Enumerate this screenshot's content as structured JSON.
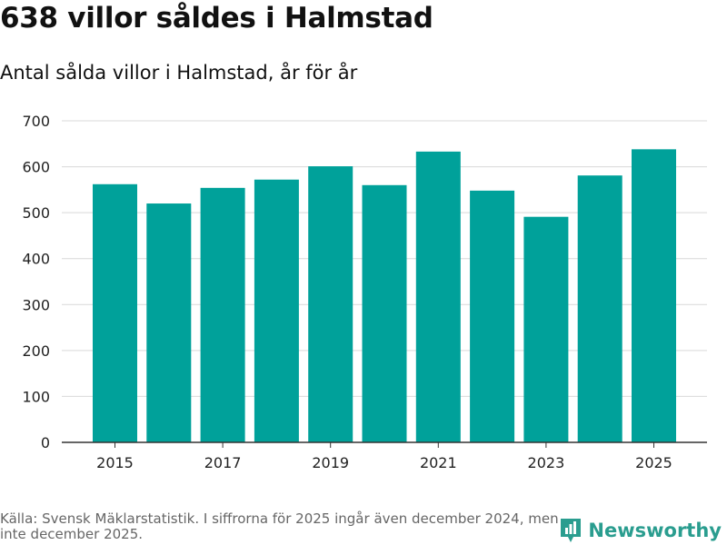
{
  "title": "638 villor såldes i Halmstad",
  "subtitle": "Antal sålda villor i Halmstad, år för år",
  "source_note": "Källa: Svensk Mäklarstatistik. I siffrorna för 2025 ingår även december 2024, men inte december 2025.",
  "brand": {
    "name": "Newsworthy",
    "icon": "newsworthy-logo-icon",
    "color": "#2a9d8f"
  },
  "colors": {
    "bar": "#00a19a",
    "grid": "#d9d9d9",
    "axis": "#333333"
  },
  "chart_data": {
    "type": "bar",
    "title": "Antal sålda villor i Halmstad, år för år",
    "xlabel": "",
    "ylabel": "",
    "categories": [
      "2015",
      "2016",
      "2017",
      "2018",
      "2019",
      "2020",
      "2021",
      "2022",
      "2023",
      "2024",
      "2025"
    ],
    "values": [
      562,
      520,
      554,
      572,
      601,
      560,
      633,
      548,
      491,
      581,
      638
    ],
    "ylim": [
      0,
      700
    ],
    "yticks": [
      0,
      100,
      200,
      300,
      400,
      500,
      600,
      700
    ],
    "xtick_labels": [
      "2015",
      "2017",
      "2019",
      "2021",
      "2023",
      "2025"
    ],
    "grid": true
  }
}
